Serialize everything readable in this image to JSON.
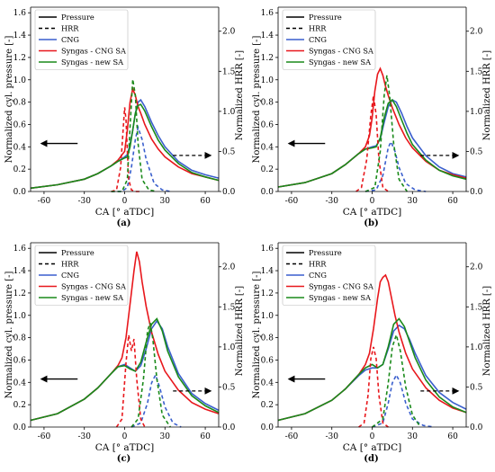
{
  "chart_data": [
    {
      "type": "line",
      "caption": "(a)",
      "xlabel": "CA [° aTDC]",
      "ylabel_left": "Normalized cyl. pressure [-]",
      "ylabel_right": "Normalized HRR [-]",
      "xlim": [
        -70,
        70
      ],
      "ylim_left": [
        0,
        1.65
      ],
      "ylim_right": [
        0,
        2.3
      ],
      "x_ticks": [
        "-60",
        "-30",
        "0",
        "30",
        "60"
      ],
      "y_ticks_left": [
        "0.0",
        "0.2",
        "0.4",
        "0.6",
        "0.8",
        "1.0",
        "1.2",
        "1.4",
        "1.6"
      ],
      "y_ticks_right": [
        "0.0",
        "0.5",
        "1.0",
        "1.5",
        "2.0"
      ],
      "legend": [
        "Pressure",
        "HRR",
        "CNG",
        "Syngas - CNG SA",
        "Syngas - new SA"
      ],
      "legend_position": "top-left",
      "colors": {
        "CNG": "#3a5fcd",
        "Syngas - CNG SA": "#e8171c",
        "Syngas - new SA": "#1a8a1a"
      },
      "annotations": [
        "left arrow: pressure on left axis",
        "right arrow: HRR on right axis"
      ],
      "series": [
        {
          "name": "CNG",
          "kind": "pressure",
          "x": [
            -70,
            -50,
            -30,
            -20,
            -10,
            -5,
            0,
            2,
            4,
            6,
            8,
            10,
            12,
            15,
            20,
            25,
            30,
            40,
            50,
            60,
            70
          ],
          "y": [
            0.03,
            0.06,
            0.11,
            0.16,
            0.23,
            0.27,
            0.31,
            0.33,
            0.42,
            0.55,
            0.7,
            0.8,
            0.82,
            0.76,
            0.62,
            0.5,
            0.4,
            0.27,
            0.19,
            0.15,
            0.12
          ]
        },
        {
          "name": "Syngas - CNG SA",
          "kind": "pressure",
          "x": [
            -70,
            -50,
            -30,
            -20,
            -10,
            -5,
            0,
            2,
            4,
            6,
            8,
            10,
            12,
            15,
            20,
            25,
            30,
            40,
            50,
            60,
            70
          ],
          "y": [
            0.03,
            0.06,
            0.11,
            0.16,
            0.23,
            0.28,
            0.36,
            0.55,
            0.8,
            0.92,
            0.86,
            0.76,
            0.7,
            0.6,
            0.47,
            0.38,
            0.31,
            0.22,
            0.16,
            0.13,
            0.1
          ]
        },
        {
          "name": "Syngas - new SA",
          "kind": "pressure",
          "x": [
            -70,
            -50,
            -30,
            -20,
            -10,
            -5,
            0,
            2,
            4,
            6,
            8,
            10,
            12,
            15,
            20,
            25,
            30,
            40,
            50,
            60,
            70
          ],
          "y": [
            0.03,
            0.06,
            0.11,
            0.16,
            0.23,
            0.27,
            0.3,
            0.31,
            0.4,
            0.55,
            0.7,
            0.77,
            0.78,
            0.72,
            0.58,
            0.46,
            0.37,
            0.25,
            0.17,
            0.13,
            0.1
          ]
        },
        {
          "name": "CNG",
          "kind": "hrr",
          "x": [
            -10,
            -2,
            2,
            5,
            8,
            10,
            13,
            16,
            22,
            28,
            34
          ],
          "y": [
            0,
            0,
            0.05,
            0.3,
            0.65,
            0.8,
            0.65,
            0.4,
            0.1,
            0.02,
            0
          ]
        },
        {
          "name": "Syngas - CNG SA",
          "kind": "hrr",
          "x": [
            -10,
            -6,
            -3,
            -1,
            0,
            1,
            2,
            3,
            5,
            8,
            12
          ],
          "y": [
            0,
            0.02,
            0.3,
            0.8,
            1.05,
            0.9,
            0.5,
            0.15,
            0.02,
            0,
            0
          ]
        },
        {
          "name": "Syngas - new SA",
          "kind": "hrr",
          "x": [
            -10,
            -2,
            2,
            4,
            6,
            8,
            10,
            13,
            18,
            24
          ],
          "y": [
            0,
            0,
            0.15,
            0.8,
            1.4,
            1.2,
            0.6,
            0.15,
            0.02,
            0
          ]
        }
      ]
    },
    {
      "type": "line",
      "caption": "(b)",
      "xlabel": "CA [° aTDC]",
      "ylabel_left": "Normalized cyl. pressure [-]",
      "ylabel_right": "Normalized HRR [-]",
      "xlim": [
        -70,
        70
      ],
      "ylim_left": [
        0,
        1.65
      ],
      "ylim_right": [
        0,
        2.3
      ],
      "x_ticks": [
        "-60",
        "-30",
        "0",
        "30",
        "60"
      ],
      "y_ticks_left": [
        "0.0",
        "0.2",
        "0.4",
        "0.6",
        "0.8",
        "1.0",
        "1.2",
        "1.4",
        "1.6"
      ],
      "y_ticks_right": [
        "0.0",
        "0.5",
        "1.0",
        "1.5",
        "2.0"
      ],
      "legend": [
        "Pressure",
        "HRR",
        "CNG",
        "Syngas - CNG SA",
        "Syngas - new SA"
      ],
      "legend_position": "top-left",
      "colors": {
        "CNG": "#3a5fcd",
        "Syngas - CNG SA": "#e8171c",
        "Syngas - new SA": "#1a8a1a"
      },
      "annotations": [
        "left arrow: pressure on left axis",
        "right arrow: HRR on right axis"
      ],
      "series": [
        {
          "name": "CNG",
          "kind": "pressure",
          "x": [
            -70,
            -50,
            -30,
            -20,
            -10,
            -5,
            0,
            3,
            6,
            9,
            12,
            15,
            18,
            22,
            26,
            30,
            40,
            50,
            60,
            70
          ],
          "y": [
            0.04,
            0.08,
            0.16,
            0.24,
            0.34,
            0.38,
            0.4,
            0.41,
            0.47,
            0.62,
            0.76,
            0.82,
            0.8,
            0.7,
            0.58,
            0.48,
            0.32,
            0.22,
            0.16,
            0.13
          ]
        },
        {
          "name": "Syngas - CNG SA",
          "kind": "pressure",
          "x": [
            -70,
            -50,
            -30,
            -20,
            -10,
            -5,
            -2,
            0,
            2,
            4,
            6,
            8,
            10,
            12,
            15,
            20,
            25,
            30,
            40,
            50,
            60,
            70
          ],
          "y": [
            0.04,
            0.08,
            0.16,
            0.24,
            0.34,
            0.4,
            0.5,
            0.66,
            0.9,
            1.05,
            1.1,
            1.04,
            0.94,
            0.86,
            0.75,
            0.6,
            0.48,
            0.39,
            0.27,
            0.19,
            0.15,
            0.12
          ]
        },
        {
          "name": "Syngas - new SA",
          "kind": "pressure",
          "x": [
            -70,
            -50,
            -30,
            -20,
            -10,
            -5,
            0,
            3,
            6,
            9,
            12,
            15,
            18,
            22,
            26,
            30,
            40,
            50,
            60,
            70
          ],
          "y": [
            0.04,
            0.08,
            0.16,
            0.24,
            0.34,
            0.38,
            0.39,
            0.4,
            0.48,
            0.66,
            0.79,
            0.82,
            0.76,
            0.64,
            0.52,
            0.42,
            0.28,
            0.19,
            0.14,
            0.11
          ]
        },
        {
          "name": "CNG",
          "kind": "hrr",
          "x": [
            -5,
            3,
            8,
            12,
            14,
            17,
            20,
            25,
            32,
            40
          ],
          "y": [
            0,
            0.02,
            0.2,
            0.55,
            0.62,
            0.5,
            0.3,
            0.1,
            0.02,
            0
          ]
        },
        {
          "name": "Syngas - CNG SA",
          "kind": "hrr",
          "x": [
            -12,
            -8,
            -4,
            -1,
            1,
            3,
            5,
            8,
            12
          ],
          "y": [
            0,
            0.05,
            0.4,
            0.95,
            1.2,
            0.95,
            0.4,
            0.05,
            0
          ]
        },
        {
          "name": "Syngas - new SA",
          "kind": "hrr",
          "x": [
            -5,
            2,
            6,
            9,
            11,
            13,
            16,
            20,
            26
          ],
          "y": [
            0,
            0.05,
            0.5,
            1.2,
            1.45,
            1.2,
            0.6,
            0.15,
            0
          ]
        }
      ]
    },
    {
      "type": "line",
      "caption": "(c)",
      "xlabel": "CA [° aTDC]",
      "ylabel_left": "Normalized cyl. pressure [-]",
      "ylabel_right": "Normalized HRR [-]",
      "xlim": [
        -70,
        70
      ],
      "ylim_left": [
        0,
        1.65
      ],
      "ylim_right": [
        0,
        2.3
      ],
      "x_ticks": [
        "-60",
        "-30",
        "0",
        "30",
        "60"
      ],
      "y_ticks_left": [
        "0.0",
        "0.2",
        "0.4",
        "0.6",
        "0.8",
        "1.0",
        "1.2",
        "1.4",
        "1.6"
      ],
      "y_ticks_right": [
        "0.0",
        "0.5",
        "1.0",
        "1.5",
        "2.0"
      ],
      "legend": [
        "Pressure",
        "HRR",
        "CNG",
        "Syngas - CNG SA",
        "Syngas - new SA"
      ],
      "legend_position": "top-left",
      "colors": {
        "CNG": "#3a5fcd",
        "Syngas - CNG SA": "#e8171c",
        "Syngas - new SA": "#1a8a1a"
      },
      "annotations": [
        "left arrow: pressure on left axis",
        "right arrow: HRR on right axis"
      ],
      "series": [
        {
          "name": "CNG",
          "kind": "pressure",
          "x": [
            -70,
            -50,
            -30,
            -20,
            -10,
            -5,
            0,
            4,
            8,
            12,
            16,
            20,
            24,
            28,
            32,
            40,
            50,
            60,
            70
          ],
          "y": [
            0.06,
            0.12,
            0.25,
            0.35,
            0.48,
            0.54,
            0.56,
            0.53,
            0.5,
            0.55,
            0.7,
            0.88,
            0.95,
            0.88,
            0.72,
            0.48,
            0.3,
            0.21,
            0.15
          ]
        },
        {
          "name": "Syngas - CNG SA",
          "kind": "pressure",
          "x": [
            -70,
            -50,
            -30,
            -20,
            -10,
            -5,
            -2,
            1,
            4,
            7,
            9,
            11,
            13,
            16,
            20,
            25,
            30,
            40,
            50,
            60,
            70
          ],
          "y": [
            0.06,
            0.12,
            0.25,
            0.35,
            0.48,
            0.55,
            0.62,
            0.8,
            1.1,
            1.4,
            1.57,
            1.48,
            1.3,
            1.08,
            0.85,
            0.65,
            0.5,
            0.33,
            0.22,
            0.16,
            0.12
          ]
        },
        {
          "name": "Syngas - new SA",
          "kind": "pressure",
          "x": [
            -70,
            -50,
            -30,
            -20,
            -10,
            -5,
            0,
            4,
            8,
            12,
            16,
            20,
            24,
            28,
            32,
            40,
            50,
            60,
            70
          ],
          "y": [
            0.06,
            0.12,
            0.25,
            0.35,
            0.48,
            0.54,
            0.55,
            0.52,
            0.5,
            0.58,
            0.76,
            0.92,
            0.97,
            0.86,
            0.68,
            0.45,
            0.28,
            0.19,
            0.13
          ]
        },
        {
          "name": "CNG",
          "kind": "hrr",
          "x": [
            5,
            12,
            17,
            20,
            23,
            26,
            30,
            36,
            42
          ],
          "y": [
            0,
            0.05,
            0.3,
            0.55,
            0.65,
            0.5,
            0.25,
            0.05,
            0
          ]
        },
        {
          "name": "Syngas - CNG SA",
          "kind": "hrr",
          "x": [
            -6,
            -2,
            1,
            3,
            5,
            7,
            9,
            12,
            15
          ],
          "y": [
            0,
            0.1,
            0.8,
            1.15,
            0.95,
            1.1,
            0.6,
            0.1,
            0
          ]
        },
        {
          "name": "Syngas - new SA",
          "kind": "hrr",
          "x": [
            5,
            10,
            14,
            17,
            19,
            21,
            24,
            28,
            34
          ],
          "y": [
            0,
            0.1,
            0.6,
            1.2,
            1.3,
            1.1,
            0.6,
            0.15,
            0
          ]
        }
      ]
    },
    {
      "type": "line",
      "caption": "(d)",
      "xlabel": "CA [° aTDC]",
      "ylabel_left": "Normalized cyl. pressure [-]",
      "ylabel_right": "Normalized HRR [-]",
      "xlim": [
        -70,
        70
      ],
      "ylim_left": [
        0,
        1.65
      ],
      "ylim_right": [
        0,
        2.3
      ],
      "x_ticks": [
        "-60",
        "-30",
        "0",
        "30",
        "60"
      ],
      "y_ticks_left": [
        "0.0",
        "0.2",
        "0.4",
        "0.6",
        "0.8",
        "1.0",
        "1.2",
        "1.4",
        "1.6"
      ],
      "y_ticks_right": [
        "0.0",
        "0.5",
        "1.0",
        "1.5",
        "2.0"
      ],
      "legend": [
        "Pressure",
        "HRR",
        "CNG",
        "Syngas - CNG SA",
        "Syngas - new SA"
      ],
      "legend_position": "top-left",
      "colors": {
        "CNG": "#3a5fcd",
        "Syngas - CNG SA": "#e8171c",
        "Syngas - new SA": "#1a8a1a"
      },
      "annotations": [
        "left arrow: pressure on left axis",
        "right arrow: HRR on right axis"
      ],
      "series": [
        {
          "name": "CNG",
          "kind": "pressure",
          "x": [
            -70,
            -50,
            -30,
            -20,
            -10,
            -5,
            0,
            4,
            8,
            12,
            16,
            20,
            24,
            28,
            32,
            40,
            50,
            60,
            70
          ],
          "y": [
            0.06,
            0.12,
            0.24,
            0.34,
            0.46,
            0.51,
            0.53,
            0.53,
            0.56,
            0.7,
            0.86,
            0.91,
            0.88,
            0.78,
            0.66,
            0.46,
            0.31,
            0.22,
            0.16
          ]
        },
        {
          "name": "Syngas - CNG SA",
          "kind": "pressure",
          "x": [
            -70,
            -50,
            -30,
            -20,
            -10,
            -5,
            -2,
            1,
            4,
            6,
            8,
            10,
            12,
            14,
            17,
            20,
            25,
            30,
            40,
            50,
            60,
            70
          ],
          "y": [
            0.06,
            0.12,
            0.24,
            0.34,
            0.47,
            0.56,
            0.66,
            0.88,
            1.15,
            1.3,
            1.34,
            1.36,
            1.3,
            1.18,
            1.0,
            0.85,
            0.66,
            0.52,
            0.35,
            0.24,
            0.17,
            0.13
          ]
        },
        {
          "name": "Syngas - new SA",
          "kind": "pressure",
          "x": [
            -70,
            -50,
            -30,
            -20,
            -10,
            -5,
            0,
            4,
            8,
            12,
            16,
            20,
            24,
            28,
            32,
            40,
            50,
            60,
            70
          ],
          "y": [
            0.06,
            0.12,
            0.24,
            0.34,
            0.47,
            0.53,
            0.56,
            0.53,
            0.56,
            0.72,
            0.92,
            0.97,
            0.9,
            0.76,
            0.62,
            0.42,
            0.27,
            0.18,
            0.13
          ]
        },
        {
          "name": "CNG",
          "kind": "hrr",
          "x": [
            0,
            8,
            12,
            15,
            18,
            21,
            25,
            30,
            38,
            46
          ],
          "y": [
            0,
            0.05,
            0.3,
            0.55,
            0.65,
            0.55,
            0.3,
            0.1,
            0.02,
            0
          ]
        },
        {
          "name": "Syngas - CNG SA",
          "kind": "hrr",
          "x": [
            -10,
            -6,
            -3,
            -1,
            1,
            3,
            5,
            8,
            12
          ],
          "y": [
            0,
            0.05,
            0.4,
            0.85,
            1.0,
            0.85,
            0.4,
            0.05,
            0
          ]
        },
        {
          "name": "Syngas - new SA",
          "kind": "hrr",
          "x": [
            0,
            8,
            12,
            15,
            18,
            21,
            25,
            30,
            36
          ],
          "y": [
            0,
            0.1,
            0.55,
            1.0,
            1.15,
            0.95,
            0.5,
            0.15,
            0
          ]
        }
      ]
    }
  ]
}
